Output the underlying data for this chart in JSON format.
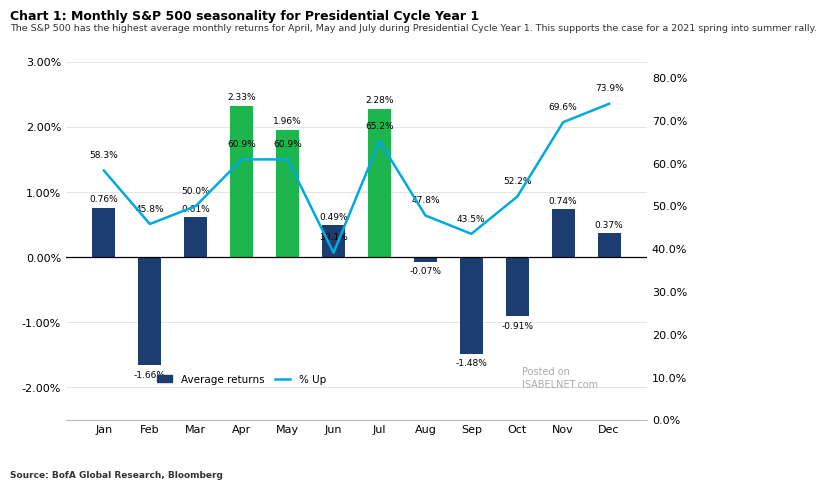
{
  "months": [
    "Jan",
    "Feb",
    "Mar",
    "Apr",
    "May",
    "Jun",
    "Jul",
    "Aug",
    "Sep",
    "Oct",
    "Nov",
    "Dec"
  ],
  "avg_returns": [
    0.76,
    -1.66,
    0.61,
    2.33,
    1.96,
    0.49,
    2.28,
    -0.07,
    -1.48,
    -0.91,
    0.74,
    0.37
  ],
  "pct_up": [
    58.3,
    45.8,
    50.0,
    60.9,
    60.9,
    39.1,
    65.2,
    47.8,
    43.5,
    52.2,
    69.6,
    73.9
  ],
  "bar_colors": [
    "#1b3d6f",
    "#1b3d6f",
    "#1b3d6f",
    "#1db54e",
    "#1db54e",
    "#1b3d6f",
    "#1db54e",
    "#1b3d6f",
    "#1b3d6f",
    "#1b3d6f",
    "#1b3d6f",
    "#1b3d6f"
  ],
  "line_color": "#00aadd",
  "title": "Chart 1: Monthly S&P 500 seasonality for Presidential Cycle Year 1",
  "subtitle": "The S&P 500 has the highest average monthly returns for April, May and July during Presidential Cycle Year 1. This supports the case for a 2021 spring into summer rally.",
  "source": "Source: BofA Global Research, Bloomberg",
  "ylim_left": [
    -2.5,
    3.25
  ],
  "ylim_right": [
    0.0,
    87.5
  ],
  "yticks_left": [
    -2.0,
    -1.0,
    0.0,
    1.0,
    2.0,
    3.0
  ],
  "yticks_right": [
    0.0,
    10.0,
    20.0,
    30.0,
    40.0,
    50.0,
    60.0,
    70.0,
    80.0
  ],
  "bg_color": "#ffffff",
  "grid_color": "#e0e0e0",
  "bar_width": 0.5
}
